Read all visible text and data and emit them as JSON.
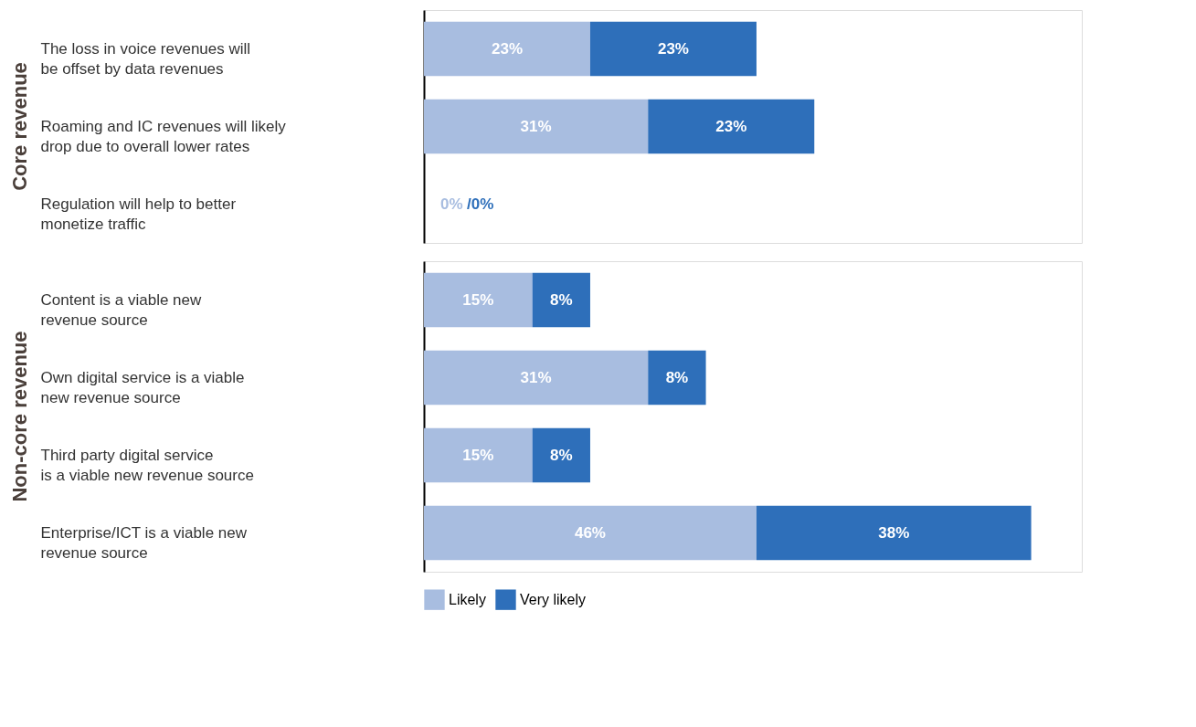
{
  "chart_data": [
    {
      "type": "bar",
      "orientation": "horizontal",
      "stacked": true,
      "title": "Core revenue",
      "tick_labels": "y",
      "legend": "bottom",
      "grid": false,
      "xlim": [
        0,
        91
      ],
      "categories": [
        "The loss in voice revenues will\nbe offset by data revenues",
        "Roaming and IC revenues will likely\ndrop due to overall lower rates",
        "Regulation will help to better\nmonetize traffic"
      ],
      "series": [
        {
          "name": "Likely",
          "color": "#a8bde0",
          "values": [
            23,
            31,
            0
          ],
          "value_labels": [
            "23%",
            "31%",
            "0%"
          ]
        },
        {
          "name": "Very likely",
          "color": "#2e6fba",
          "values": [
            23,
            23,
            0
          ],
          "value_labels": [
            "23%",
            "23%",
            "/0%"
          ]
        }
      ]
    },
    {
      "type": "bar",
      "orientation": "horizontal",
      "stacked": true,
      "title": "Non-core revenue",
      "tick_labels": "y",
      "legend": "bottom",
      "grid": false,
      "xlim": [
        0,
        91
      ],
      "categories": [
        "Content is a viable new\nrevenue source",
        "Own digital service is a viable\nnew revenue source",
        "Third party digital service\nis a viable new revenue source",
        "Enterprise/ICT is a viable new\nrevenue source"
      ],
      "series": [
        {
          "name": "Likely",
          "color": "#a8bde0",
          "values": [
            15,
            31,
            15,
            46
          ],
          "value_labels": [
            "15%",
            "31%",
            "15%",
            "46%"
          ]
        },
        {
          "name": "Very likely",
          "color": "#2e6fba",
          "values": [
            8,
            8,
            8,
            38
          ],
          "value_labels": [
            "8%",
            "8%",
            "8%",
            "38%"
          ]
        }
      ]
    }
  ]
}
